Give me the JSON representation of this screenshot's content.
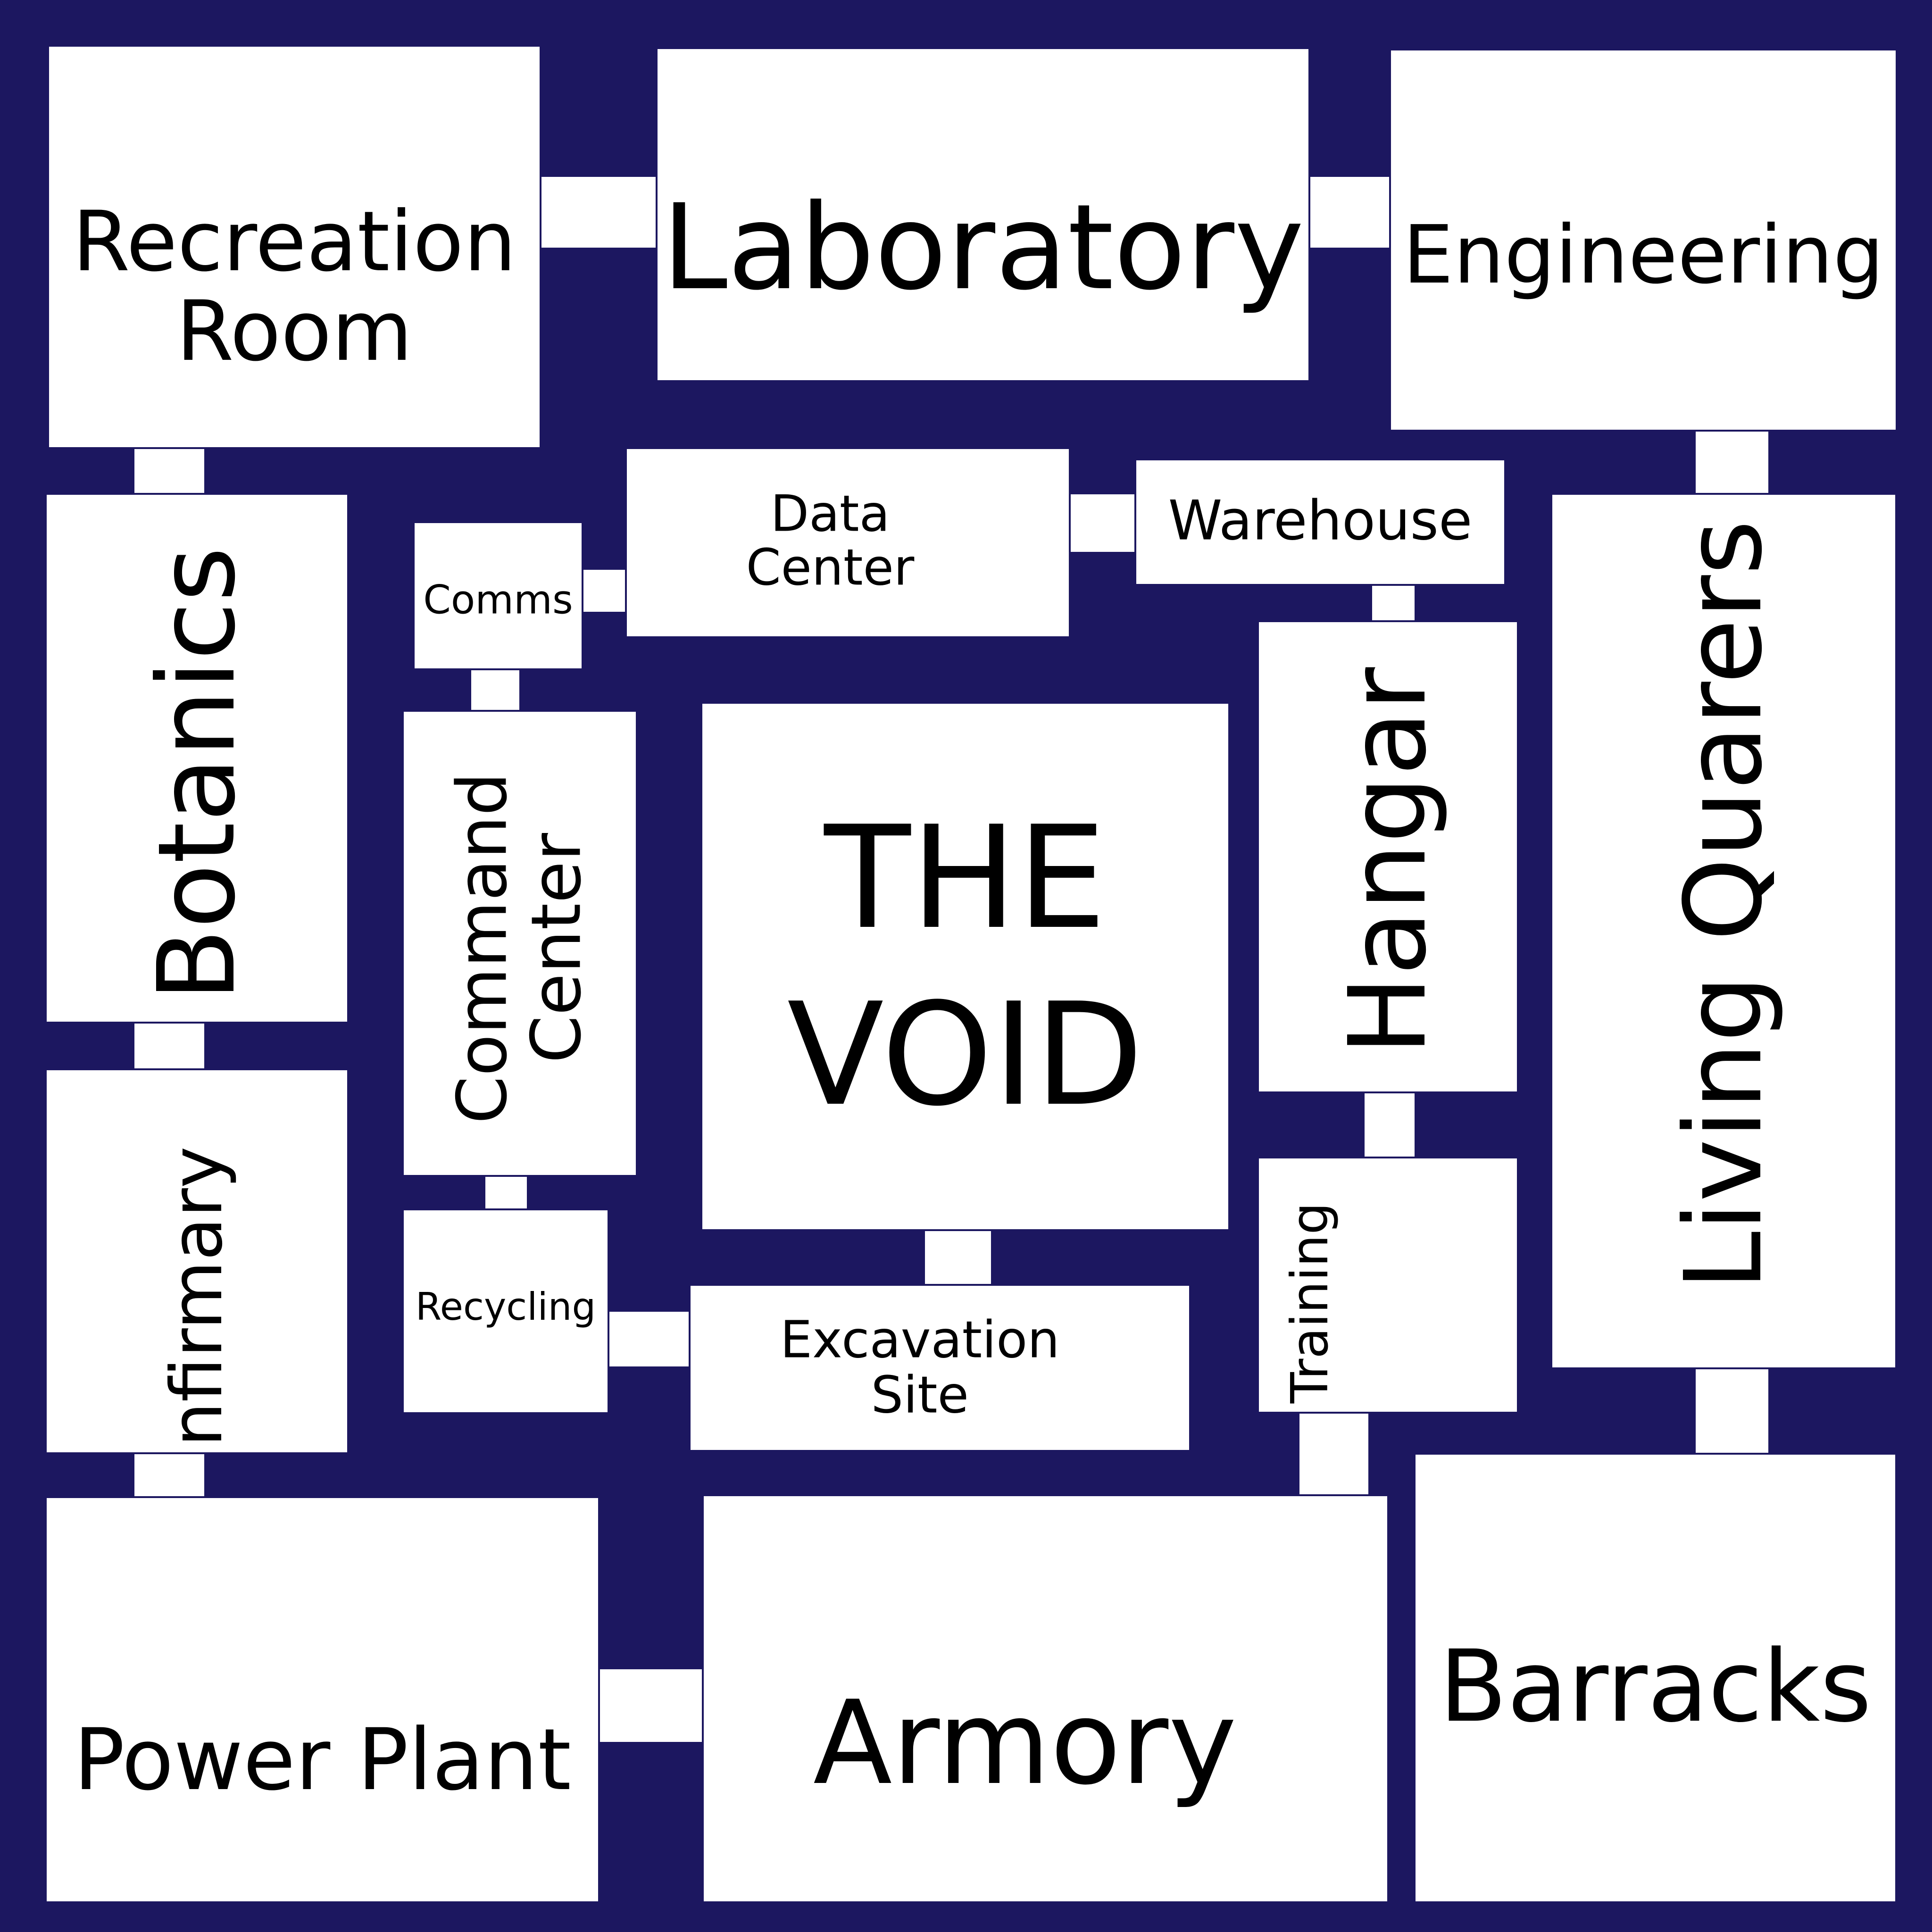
{
  "colors": {
    "background": "#1c1760",
    "room_fill": "#ffffff",
    "label": "#000000"
  },
  "rooms": {
    "recreation_room": [
      "Recreation",
      "Room"
    ],
    "laboratory": "Laboratory",
    "engineering": "Engineering",
    "botanics": "Botanics",
    "comms": "Comms",
    "data_center": [
      "Data",
      "Center"
    ],
    "warehouse": "Warehouse",
    "living_quarters": "Living Quarers",
    "command_center": [
      "Command",
      "Center"
    ],
    "the_void": [
      "THE",
      "VOID"
    ],
    "hangar": "Hangar",
    "infirmary": "Infirmary",
    "recycling": "Recycling",
    "excavation_site": [
      "Excavation",
      "Site"
    ],
    "training": "Training",
    "power_plant": "Power Plant",
    "armory": "Armory",
    "barracks": "Barracks"
  }
}
